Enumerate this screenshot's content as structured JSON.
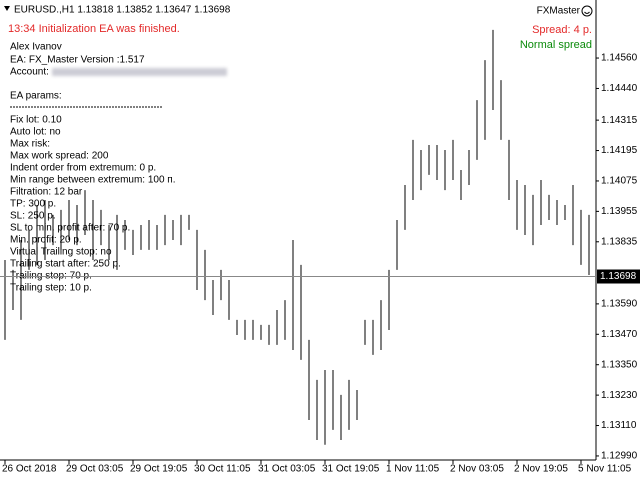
{
  "chart_data": {
    "type": "ohlc",
    "title": "EURUSD.,H1  1.13818 1.13852 1.13647 1.13698",
    "status": "13:34 Initialization EA was finished.",
    "brand": "FXMaster",
    "spread": "Spread: 4 p.",
    "spread_state": "Normal spread",
    "author": "Alex Ivanov",
    "ea": "EA: FX_Master Version :1.517",
    "account": "Account:",
    "params_title": "EA params:",
    "info_lines": [
      "Fix lot: 0.10",
      "Auto lot: no",
      "Max risk:",
      "Max work spread: 200",
      "Indent order from extremum: 0 p.",
      "Min range between extremum: 100 п.",
      "Filtration: 12 bar",
      "TP: 300 p.",
      "SL: 250 p.",
      "SL to min. profit after: 70 p.",
      "Min. profit: 20 p.",
      "Virtual Trailing stop: no",
      "Trailing start after: 250 p.",
      "Trailing stop: 70 p.",
      "Trailing step: 10 p."
    ],
    "current_price": {
      "value": 1.13698,
      "label": "1.13698"
    },
    "color": "#000000",
    "ylim": [
      1.12974,
      1.14789
    ],
    "yticks": [
      {
        "value": 1.1456,
        "label": "1.14560"
      },
      {
        "value": 1.1444,
        "label": "1.14440"
      },
      1.14315,
      1.14195,
      1.14075,
      1.13955,
      1.13835,
      {
        "value": 1.1359,
        "label": "1.13590"
      },
      {
        "value": 1.1347,
        "label": "1.13470"
      },
      {
        "value": 1.1335,
        "label": "1.13350"
      },
      {
        "value": 1.1323,
        "label": "1.13230"
      },
      {
        "value": 1.1311,
        "label": "1.13110"
      },
      {
        "value": 1.1299,
        "label": "1.12990"
      }
    ],
    "categories": [
      "26 Oct 2018",
      null,
      null,
      null,
      null,
      null,
      null,
      null,
      "29 Oct 03:05",
      null,
      null,
      null,
      null,
      null,
      null,
      null,
      "29 Oct 19:05",
      null,
      null,
      null,
      null,
      null,
      null,
      null,
      "30 Oct 11:05",
      null,
      null,
      null,
      null,
      null,
      null,
      null,
      "31 Oct 03:05",
      null,
      null,
      null,
      null,
      null,
      null,
      null,
      "31 Oct 19:05",
      null,
      null,
      null,
      null,
      null,
      null,
      null,
      "1 Nov 11:05",
      null,
      null,
      null,
      null,
      null,
      null,
      null,
      "2 Nov 03:05",
      null,
      null,
      null,
      null,
      null,
      null,
      null,
      "2 Nov 19:05",
      null,
      null,
      null,
      null,
      null,
      null,
      null,
      "5 Nov 11:05",
      null
    ],
    "high": [
      1.13763,
      1.13724,
      1.13842,
      1.13882,
      1.1398,
      1.14,
      1.13941,
      1.13961,
      1.14,
      1.1398,
      1.14039,
      1.14,
      1.13961,
      1.13901,
      1.13941,
      1.13921,
      1.13882,
      1.13901,
      1.13921,
      1.13901,
      1.13941,
      1.13921,
      1.13941,
      1.13941,
      1.13882,
      1.13803,
      1.13684,
      1.13724,
      1.13684,
      1.13527,
      1.13527,
      1.13527,
      1.13507,
      1.13507,
      1.13566,
      1.13605,
      1.13842,
      1.13744,
      1.13448,
      1.1329,
      1.13329,
      1.13329,
      1.13231,
      1.1329,
      1.1325,
      1.13527,
      1.13527,
      1.13605,
      1.13724,
      1.13921,
      1.14059,
      1.14237,
      1.14197,
      1.14217,
      1.14217,
      1.14197,
      1.14237,
      1.14118,
      1.14197,
      1.14394,
      1.14552,
      1.14671,
      1.14473,
      1.14237,
      1.14079,
      1.14059,
      1.1402,
      1.14079,
      1.1402,
      1.14,
      1.1398,
      1.14059,
      1.13961,
      1.13941
    ],
    "low": [
      1.13448,
      1.13566,
      1.13527,
      1.13724,
      1.13744,
      1.13763,
      1.13822,
      1.13803,
      1.13842,
      1.13822,
      1.13862,
      1.13763,
      1.13822,
      1.13763,
      1.13724,
      1.13803,
      1.13783,
      1.13803,
      1.13803,
      1.13803,
      1.13822,
      1.13842,
      1.13822,
      1.13882,
      1.13645,
      1.13605,
      1.13546,
      1.13605,
      1.13527,
      1.13467,
      1.13448,
      1.13448,
      1.13448,
      1.13428,
      1.13428,
      1.13448,
      1.13408,
      1.13369,
      1.13132,
      1.13053,
      1.13034,
      1.13093,
      1.13053,
      1.13093,
      1.13132,
      1.13428,
      1.13389,
      1.13408,
      1.13487,
      1.13724,
      1.13882,
      1.14,
      1.14039,
      1.14099,
      1.14079,
      1.14039,
      1.14079,
      1.14,
      1.14059,
      1.14158,
      1.14237,
      1.14355,
      1.14237,
      1.14,
      1.13882,
      1.13862,
      1.13822,
      1.13901,
      1.13921,
      1.13901,
      1.13921,
      1.13822,
      1.13744,
      1.13704
    ]
  }
}
